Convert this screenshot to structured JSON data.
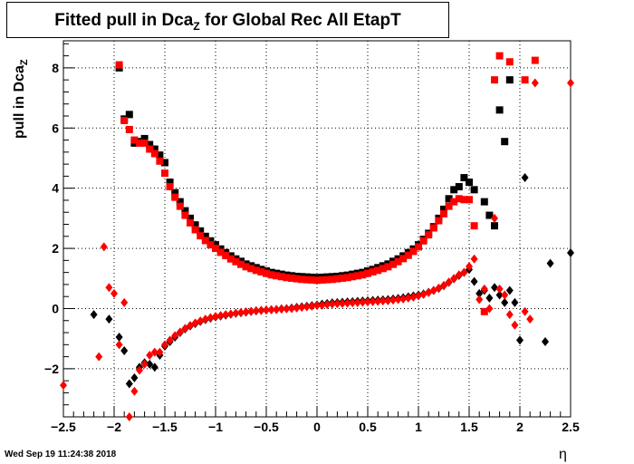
{
  "title": {
    "main": "Fitted pull in Dca",
    "sub": "Z",
    "rest": " for Global Rec All EtapT"
  },
  "ylabel": {
    "main": "pull in Dca",
    "sub": "Z"
  },
  "xlabel": "η",
  "timestamp": "Wed Sep 19 11:24:38 2018",
  "chart_data": {
    "type": "scatter",
    "title": "Fitted pull in Dca_Z for Global Rec All EtapT",
    "xlabel": "η",
    "ylabel": "pull in Dca_Z",
    "xlim": [
      -2.5,
      2.5
    ],
    "ylim": [
      -3.6,
      8.9
    ],
    "grid": true,
    "xticks": [
      -2.5,
      -2,
      -1.5,
      -1,
      -0.5,
      0,
      0.5,
      1,
      1.5,
      2,
      2.5
    ],
    "xtick_labels": [
      "−2.5",
      "−2",
      "−1.5",
      "−1",
      "−0.5",
      "0",
      "0.5",
      "1",
      "1.5",
      "2",
      "2.5"
    ],
    "yticks": [
      -2,
      0,
      2,
      4,
      6,
      8
    ],
    "ytick_labels": [
      "−2",
      "0",
      "2",
      "4",
      "6",
      "8"
    ],
    "series": [
      {
        "marker": "square",
        "color": "#000000",
        "x": [
          -1.95,
          -1.9,
          -1.85,
          -1.8,
          -1.75,
          -1.7,
          -1.65,
          -1.6,
          -1.55,
          -1.5,
          -1.45,
          -1.4,
          -1.35,
          -1.3,
          -1.25,
          -1.2,
          -1.15,
          -1.1,
          -1.05,
          -1.0,
          -0.95,
          -0.9,
          -0.85,
          -0.8,
          -0.75,
          -0.7,
          -0.65,
          -0.6,
          -0.55,
          -0.5,
          -0.45,
          -0.4,
          -0.35,
          -0.3,
          -0.25,
          -0.2,
          -0.15,
          -0.1,
          -0.05,
          0.0,
          0.05,
          0.1,
          0.15,
          0.2,
          0.25,
          0.3,
          0.35,
          0.4,
          0.45,
          0.5,
          0.55,
          0.6,
          0.65,
          0.7,
          0.75,
          0.8,
          0.85,
          0.9,
          0.95,
          1.0,
          1.05,
          1.1,
          1.15,
          1.2,
          1.25,
          1.3,
          1.35,
          1.4,
          1.45,
          1.5,
          1.55,
          1.65,
          1.7,
          1.75,
          1.8,
          1.85,
          1.9
        ],
        "y": [
          8.0,
          6.3,
          6.45,
          5.5,
          5.55,
          5.65,
          5.45,
          5.3,
          5.1,
          4.85,
          4.2,
          3.85,
          3.55,
          3.25,
          3.0,
          2.78,
          2.58,
          2.4,
          2.25,
          2.12,
          1.98,
          1.86,
          1.75,
          1.65,
          1.57,
          1.48,
          1.42,
          1.36,
          1.3,
          1.25,
          1.2,
          1.17,
          1.14,
          1.11,
          1.09,
          1.07,
          1.06,
          1.05,
          1.04,
          1.03,
          1.04,
          1.05,
          1.06,
          1.07,
          1.09,
          1.11,
          1.14,
          1.17,
          1.2,
          1.25,
          1.3,
          1.36,
          1.42,
          1.48,
          1.57,
          1.65,
          1.75,
          1.86,
          1.98,
          2.12,
          2.3,
          2.5,
          2.72,
          3.0,
          3.3,
          3.65,
          3.95,
          4.05,
          4.35,
          4.2,
          3.95,
          3.55,
          3.1,
          2.75,
          6.6,
          5.55,
          7.6
        ]
      },
      {
        "marker": "square",
        "color": "#ff0000",
        "x": [
          -1.95,
          -1.9,
          -1.85,
          -1.8,
          -1.75,
          -1.7,
          -1.65,
          -1.6,
          -1.55,
          -1.5,
          -1.45,
          -1.4,
          -1.35,
          -1.3,
          -1.25,
          -1.2,
          -1.15,
          -1.1,
          -1.05,
          -1.0,
          -0.95,
          -0.9,
          -0.85,
          -0.8,
          -0.75,
          -0.7,
          -0.65,
          -0.6,
          -0.55,
          -0.5,
          -0.45,
          -0.4,
          -0.35,
          -0.3,
          -0.25,
          -0.2,
          -0.15,
          -0.1,
          -0.05,
          0.0,
          0.05,
          0.1,
          0.15,
          0.2,
          0.25,
          0.3,
          0.35,
          0.4,
          0.45,
          0.5,
          0.55,
          0.6,
          0.65,
          0.7,
          0.75,
          0.8,
          0.85,
          0.9,
          0.95,
          1.0,
          1.05,
          1.1,
          1.15,
          1.2,
          1.25,
          1.3,
          1.35,
          1.4,
          1.45,
          1.5,
          1.55,
          1.65,
          1.75,
          1.8,
          1.9,
          2.05,
          2.15
        ],
        "y": [
          8.1,
          6.25,
          5.95,
          5.6,
          5.5,
          5.5,
          5.3,
          5.15,
          4.9,
          4.5,
          4.05,
          3.7,
          3.4,
          3.1,
          2.85,
          2.62,
          2.42,
          2.26,
          2.12,
          2.0,
          1.87,
          1.76,
          1.65,
          1.56,
          1.47,
          1.39,
          1.33,
          1.27,
          1.22,
          1.17,
          1.12,
          1.09,
          1.06,
          1.03,
          1.01,
          0.99,
          0.97,
          0.96,
          0.95,
          0.94,
          0.95,
          0.96,
          0.97,
          0.99,
          1.01,
          1.03,
          1.06,
          1.09,
          1.12,
          1.17,
          1.22,
          1.27,
          1.33,
          1.39,
          1.47,
          1.56,
          1.66,
          1.77,
          1.9,
          2.05,
          2.25,
          2.45,
          2.68,
          2.92,
          3.15,
          3.4,
          3.55,
          3.65,
          3.62,
          3.62,
          2.75,
          -0.1,
          7.6,
          8.4,
          8.2,
          7.6,
          8.25
        ]
      },
      {
        "marker": "diamond",
        "color": "#000000",
        "x": [
          -2.2,
          -2.05,
          -1.95,
          -1.9,
          -1.85,
          -1.8,
          -1.75,
          -1.7,
          -1.65,
          -1.6,
          -1.55,
          -1.5,
          -1.45,
          -1.4,
          -1.35,
          -1.3,
          -1.25,
          -1.2,
          -1.15,
          -1.1,
          -1.05,
          -1.0,
          -0.95,
          -0.9,
          -0.85,
          -0.8,
          -0.75,
          -0.7,
          -0.65,
          -0.6,
          -0.55,
          -0.5,
          -0.45,
          -0.4,
          -0.35,
          -0.3,
          -0.25,
          -0.2,
          -0.15,
          -0.1,
          -0.05,
          0.0,
          0.05,
          0.1,
          0.15,
          0.2,
          0.25,
          0.3,
          0.35,
          0.4,
          0.45,
          0.5,
          0.55,
          0.6,
          0.65,
          0.7,
          0.75,
          0.8,
          0.85,
          0.9,
          0.95,
          1.0,
          1.05,
          1.1,
          1.15,
          1.2,
          1.25,
          1.3,
          1.35,
          1.4,
          1.45,
          1.5,
          1.55,
          1.6,
          1.65,
          1.7,
          1.75,
          1.8,
          1.85,
          1.9,
          1.95,
          2.0,
          2.05,
          2.25,
          2.3,
          2.5
        ],
        "y": [
          -0.2,
          -0.35,
          -0.95,
          -1.4,
          -2.5,
          -2.3,
          -1.95,
          -1.8,
          -1.85,
          -1.95,
          -1.55,
          -1.25,
          -1.1,
          -0.95,
          -0.8,
          -0.68,
          -0.58,
          -0.5,
          -0.43,
          -0.37,
          -0.32,
          -0.28,
          -0.25,
          -0.22,
          -0.19,
          -0.16,
          -0.14,
          -0.12,
          -0.1,
          -0.08,
          -0.06,
          -0.05,
          -0.04,
          -0.03,
          -0.01,
          0.0,
          0.02,
          0.04,
          0.06,
          0.08,
          0.1,
          0.12,
          0.15,
          0.17,
          0.19,
          0.2,
          0.21,
          0.22,
          0.23,
          0.24,
          0.25,
          0.26,
          0.27,
          0.28,
          0.29,
          0.3,
          0.32,
          0.34,
          0.36,
          0.39,
          0.42,
          0.45,
          0.49,
          0.54,
          0.6,
          0.67,
          0.76,
          0.87,
          0.99,
          1.1,
          1.2,
          1.3,
          0.9,
          0.5,
          0.6,
          0.35,
          0.7,
          0.45,
          0.2,
          0.6,
          0.2,
          -1.05,
          4.35,
          -1.1,
          1.5,
          1.85
        ]
      },
      {
        "marker": "diamond",
        "color": "#ff0000",
        "x": [
          -2.5,
          -2.15,
          -2.1,
          -2.05,
          -2.0,
          -1.95,
          -1.9,
          -1.85,
          -1.8,
          -1.75,
          -1.7,
          -1.65,
          -1.6,
          -1.55,
          -1.5,
          -1.45,
          -1.4,
          -1.35,
          -1.3,
          -1.25,
          -1.2,
          -1.15,
          -1.1,
          -1.05,
          -1.0,
          -0.95,
          -0.9,
          -0.85,
          -0.8,
          -0.75,
          -0.7,
          -0.65,
          -0.6,
          -0.55,
          -0.5,
          -0.45,
          -0.4,
          -0.35,
          -0.3,
          -0.25,
          -0.2,
          -0.15,
          -0.1,
          -0.05,
          0.0,
          0.05,
          0.1,
          0.15,
          0.2,
          0.25,
          0.3,
          0.35,
          0.4,
          0.45,
          0.5,
          0.55,
          0.6,
          0.65,
          0.7,
          0.75,
          0.8,
          0.85,
          0.9,
          0.95,
          1.0,
          1.05,
          1.1,
          1.15,
          1.2,
          1.25,
          1.3,
          1.35,
          1.4,
          1.45,
          1.5,
          1.55,
          1.6,
          1.65,
          1.7,
          1.75,
          1.8,
          1.85,
          1.9,
          1.95,
          2.05,
          2.1,
          2.15,
          2.5
        ],
        "y": [
          -2.55,
          -1.6,
          2.05,
          0.7,
          0.5,
          -1.2,
          0.2,
          -3.6,
          -2.75,
          -2.05,
          -1.85,
          -1.55,
          -1.45,
          -1.45,
          -1.2,
          -1.05,
          -0.9,
          -0.78,
          -0.66,
          -0.56,
          -0.48,
          -0.41,
          -0.35,
          -0.3,
          -0.26,
          -0.23,
          -0.2,
          -0.18,
          -0.15,
          -0.13,
          -0.11,
          -0.09,
          -0.07,
          -0.06,
          -0.05,
          -0.04,
          -0.03,
          -0.02,
          -0.01,
          0.0,
          0.02,
          0.04,
          0.06,
          0.08,
          0.1,
          0.11,
          0.13,
          0.15,
          0.16,
          0.17,
          0.18,
          0.19,
          0.2,
          0.21,
          0.22,
          0.23,
          0.24,
          0.25,
          0.26,
          0.28,
          0.3,
          0.32,
          0.35,
          0.38,
          0.42,
          0.47,
          0.53,
          0.6,
          0.68,
          0.77,
          0.88,
          1.0,
          1.12,
          1.2,
          1.4,
          1.65,
          0.3,
          0.65,
          0.0,
          3.0,
          0.65,
          0.45,
          -0.2,
          -0.55,
          -0.1,
          -0.35,
          7.5,
          7.5
        ]
      }
    ]
  }
}
